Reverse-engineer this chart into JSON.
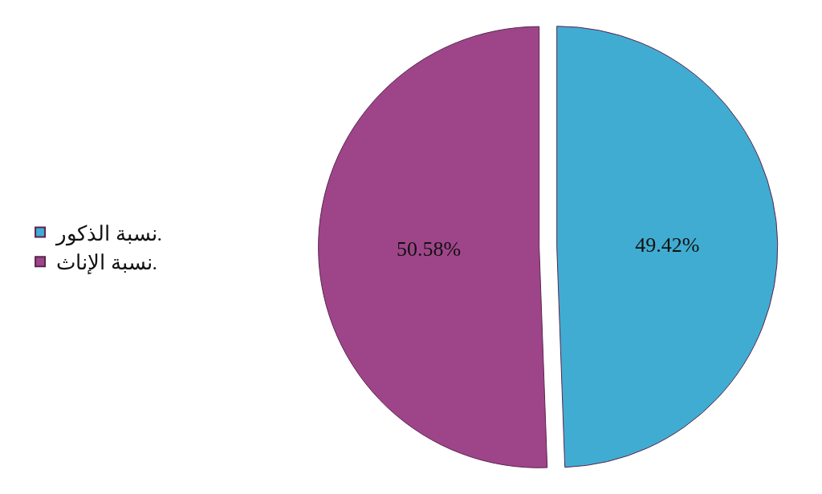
{
  "chart_data": {
    "type": "pie",
    "categories": [
      "نسبة الذكور.",
      "نسبة الإناث."
    ],
    "values": [
      49.42,
      50.58
    ],
    "colors": [
      "#41acd1",
      "#9e4589"
    ],
    "value_labels": [
      "49.42%",
      "50.58%"
    ],
    "legend": "left"
  }
}
